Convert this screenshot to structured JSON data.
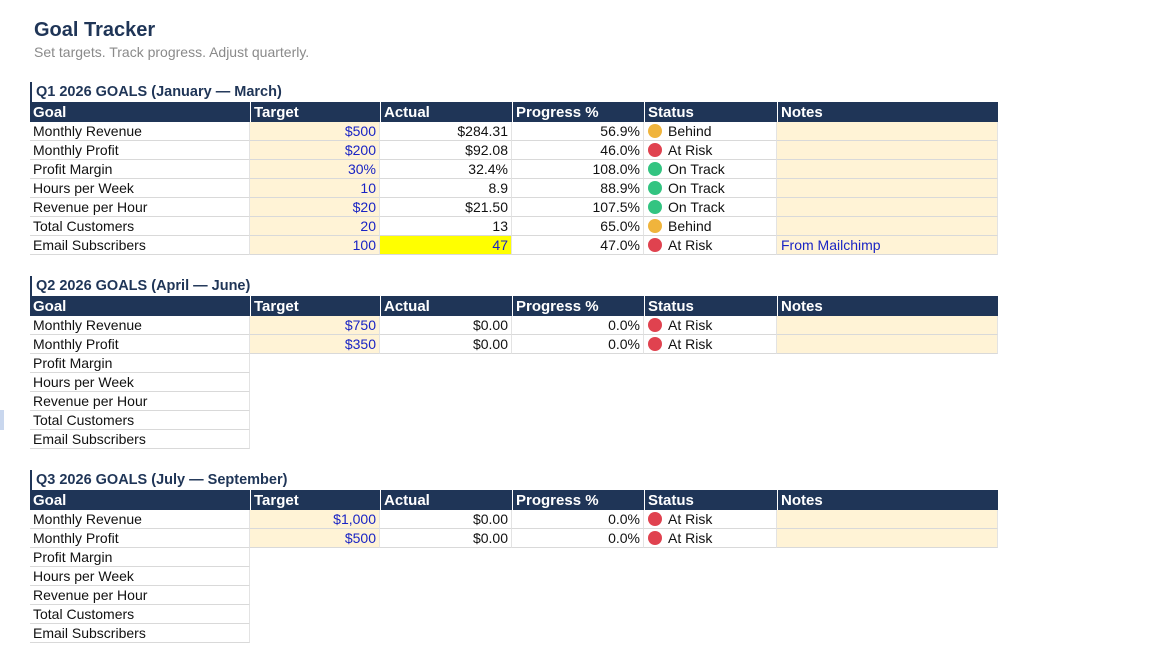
{
  "page": {
    "title": "Goal Tracker",
    "subtitle": "Set targets. Track progress. Adjust quarterly."
  },
  "columns": [
    "Goal",
    "Target",
    "Actual",
    "Progress %",
    "Status",
    "Notes"
  ],
  "status_colors": {
    "Behind": "#f0b43c",
    "At Risk": "#e0424f",
    "On Track": "#33c481"
  },
  "icons": {
    "status_dot": "circle-icon"
  },
  "sections": [
    {
      "title": "Q1 2026 GOALS (January — March)",
      "rows": [
        {
          "goal": "Monthly Revenue",
          "target": "$500",
          "actual": "$284.31",
          "progress": "56.9%",
          "status": "Behind",
          "notes": ""
        },
        {
          "goal": "Monthly Profit",
          "target": "$200",
          "actual": "$92.08",
          "progress": "46.0%",
          "status": "At Risk",
          "notes": ""
        },
        {
          "goal": "Profit Margin",
          "target": "30%",
          "actual": "32.4%",
          "progress": "108.0%",
          "status": "On Track",
          "notes": ""
        },
        {
          "goal": "Hours per Week",
          "target": "10",
          "actual": "8.9",
          "progress": "88.9%",
          "status": "On Track",
          "notes": ""
        },
        {
          "goal": "Revenue per Hour",
          "target": "$20",
          "actual": "$21.50",
          "progress": "107.5%",
          "status": "On Track",
          "notes": ""
        },
        {
          "goal": "Total Customers",
          "target": "20",
          "actual": "13",
          "progress": "65.0%",
          "status": "Behind",
          "notes": ""
        },
        {
          "goal": "Email Subscribers",
          "target": "100",
          "actual": "47",
          "progress": "47.0%",
          "status": "At Risk",
          "notes": "From Mailchimp",
          "highlight_actual": true
        }
      ]
    },
    {
      "title": "Q2 2026 GOALS (April — June)",
      "rows": [
        {
          "goal": "Monthly Revenue",
          "target": "$750",
          "actual": "$0.00",
          "progress": "0.0%",
          "status": "At Risk",
          "notes": ""
        },
        {
          "goal": "Monthly Profit",
          "target": "$350",
          "actual": "$0.00",
          "progress": "0.0%",
          "status": "At Risk",
          "notes": ""
        },
        {
          "goal": "Profit Margin"
        },
        {
          "goal": "Hours per Week"
        },
        {
          "goal": "Revenue per Hour"
        },
        {
          "goal": "Total Customers"
        },
        {
          "goal": "Email Subscribers"
        }
      ]
    },
    {
      "title": "Q3 2026 GOALS (July — September)",
      "rows": [
        {
          "goal": "Monthly Revenue",
          "target": "$1,000",
          "actual": "$0.00",
          "progress": "0.0%",
          "status": "At Risk",
          "notes": ""
        },
        {
          "goal": "Monthly Profit",
          "target": "$500",
          "actual": "$0.00",
          "progress": "0.0%",
          "status": "At Risk",
          "notes": ""
        },
        {
          "goal": "Profit Margin"
        },
        {
          "goal": "Hours per Week"
        },
        {
          "goal": "Revenue per Hour"
        },
        {
          "goal": "Total Customers"
        },
        {
          "goal": "Email Subscribers"
        }
      ]
    }
  ]
}
